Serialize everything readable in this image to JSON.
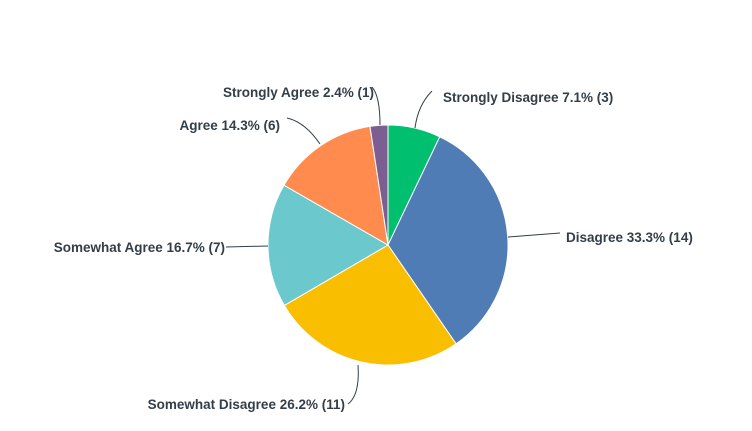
{
  "chart_data": {
    "type": "pie",
    "start": "top",
    "direction": "clockwise",
    "slices": [
      {
        "label": "Strongly Disagree",
        "percent": 7.1,
        "count": 3,
        "color": "#00BF6F",
        "text": "Strongly Disagree 7.1% (3)"
      },
      {
        "label": "Disagree",
        "percent": 33.3,
        "count": 14,
        "color": "#507CB6",
        "text": "Disagree 33.3% (14)"
      },
      {
        "label": "Somewhat Disagree",
        "percent": 26.2,
        "count": 11,
        "color": "#F9BE00",
        "text": "Somewhat Disagree 26.2% (11)"
      },
      {
        "label": "Somewhat Agree",
        "percent": 16.7,
        "count": 7,
        "color": "#6BC8CD",
        "text": "Somewhat Agree 16.7% (7)"
      },
      {
        "label": "Agree",
        "percent": 14.3,
        "count": 6,
        "color": "#FF8B4F",
        "text": "Agree 14.3% (6)"
      },
      {
        "label": "Strongly Agree",
        "percent": 2.4,
        "count": 1,
        "color": "#7D5E90",
        "text": "Strongly Agree 2.4% (1)"
      }
    ]
  }
}
